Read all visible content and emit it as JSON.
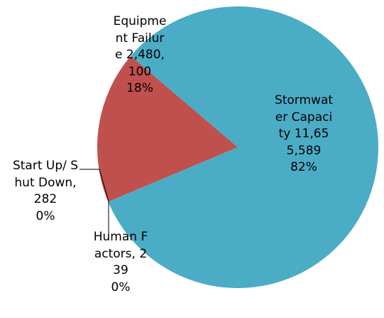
{
  "chart_data": {
    "type": "pie",
    "categories": [
      "Human Factors,",
      "Start Up/ Shut Down,",
      "Equipment Failure",
      "Stormwater Capacity"
    ],
    "values": [
      239,
      282,
      2480100,
      11655589
    ],
    "value_labels": [
      "239",
      "282",
      "2,480,100",
      "11,655,589"
    ],
    "percent_labels": [
      "0%",
      "0%",
      "18%",
      "82%"
    ],
    "colors": [
      "#4bacc6",
      "#c0504d",
      "#c0504d",
      "#4bacc6"
    ]
  }
}
